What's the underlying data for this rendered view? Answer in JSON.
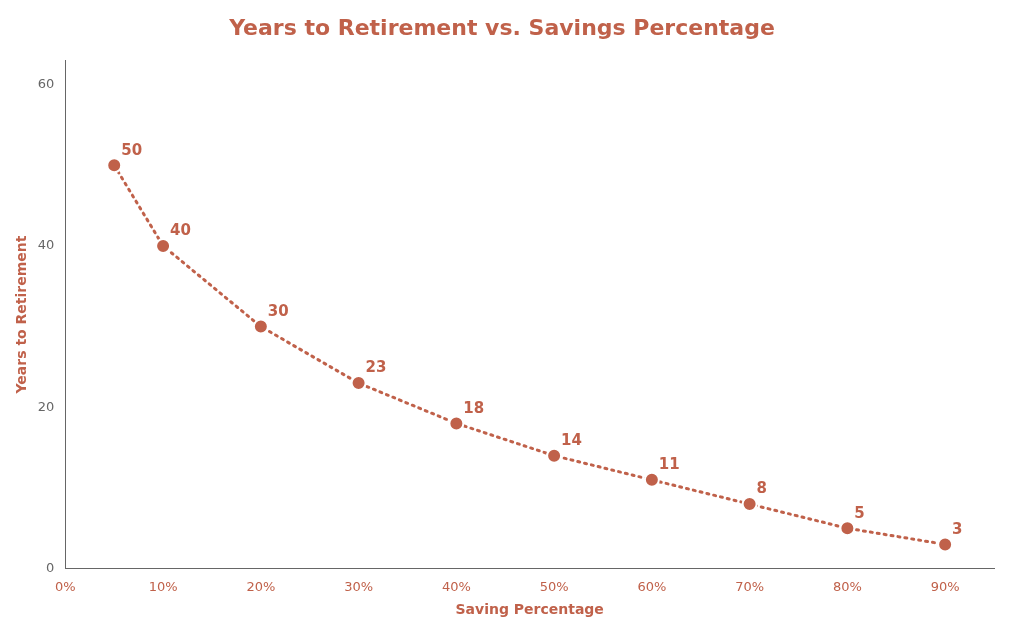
{
  "chart_data": {
    "type": "line",
    "title": "Years to Retirement vs. Savings Percentage",
    "xlabel": "Saving Percentage",
    "ylabel": "Years to Retirement",
    "x": [
      5,
      10,
      20,
      30,
      40,
      50,
      60,
      70,
      80,
      90
    ],
    "values": [
      50,
      40,
      30,
      23,
      18,
      14,
      11,
      8,
      5,
      3
    ],
    "color": "#c0614a",
    "marker": "circle",
    "line_style": "dotted",
    "xlim": [
      0,
      95
    ],
    "xticks": [
      {
        "value": 0,
        "label": "0%"
      },
      {
        "value": 10,
        "label": "10%"
      },
      {
        "value": 20,
        "label": "20%"
      },
      {
        "value": 30,
        "label": "30%"
      },
      {
        "value": 40,
        "label": "40%"
      },
      {
        "value": 50,
        "label": "50%"
      },
      {
        "value": 60,
        "label": "60%"
      },
      {
        "value": 70,
        "label": "70%"
      },
      {
        "value": 80,
        "label": "80%"
      },
      {
        "value": 90,
        "label": "90%"
      }
    ],
    "ylim": [
      0,
      63
    ],
    "yticks": [
      0,
      20,
      40,
      60
    ],
    "grid": false,
    "data_labels": true
  }
}
